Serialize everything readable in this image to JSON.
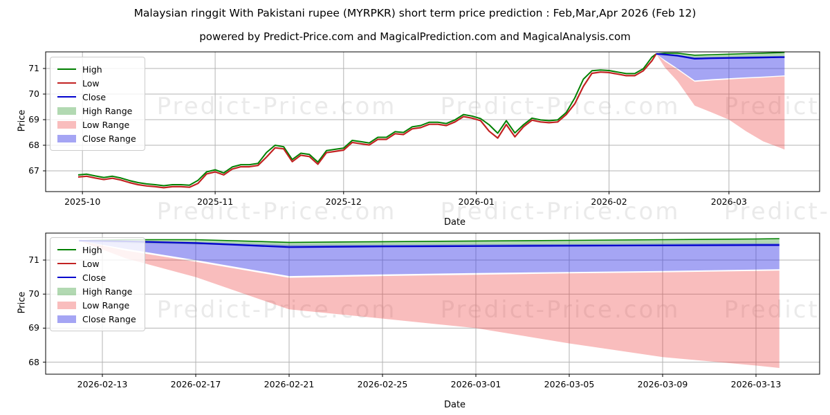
{
  "title": "Malaysian ringgit With Pakistani rupee (MYRPKR) short term price prediction : Feb,Mar,Apr 2026 (Feb 12)",
  "subtitle": "powered by Predict-Price.com and MagicalPrediction.com and MagicalAnalysis.com",
  "watermark": "Predict-Price.com",
  "colors": {
    "high_line": "#008000",
    "low_line": "#c22222",
    "close_line": "#0000cd",
    "high_range_fill": "rgba(0,128,0,0.30)",
    "low_range_fill": "rgba(235,50,50,0.32)",
    "close_range_fill": "rgba(55,55,230,0.45)",
    "grid": "#b3b3b3",
    "spine": "#000000"
  },
  "legend": {
    "items": [
      {
        "label": "High",
        "type": "line",
        "color": "#008000"
      },
      {
        "label": "Low",
        "type": "line",
        "color": "#c22222"
      },
      {
        "label": "Close",
        "type": "line",
        "color": "#0000cd"
      },
      {
        "label": "High Range",
        "type": "patch",
        "color": "rgba(0,128,0,0.30)"
      },
      {
        "label": "Low Range",
        "type": "patch",
        "color": "rgba(235,50,50,0.32)"
      },
      {
        "label": "Close Range",
        "type": "patch",
        "color": "rgba(55,55,230,0.45)"
      }
    ]
  },
  "prediction": {
    "dates": [
      "2026-02-12",
      "2026-02-14",
      "2026-02-17",
      "2026-02-21",
      "2026-02-25",
      "2026-03-01",
      "2026-03-05",
      "2026-03-09",
      "2026-03-13",
      "2026-03-14"
    ],
    "close": [
      71.57,
      71.55,
      71.5,
      71.38,
      71.4,
      71.41,
      71.42,
      71.43,
      71.44,
      71.44
    ],
    "close_max": [
      71.57,
      71.57,
      71.53,
      71.44,
      71.45,
      71.46,
      71.47,
      71.48,
      71.49,
      71.49
    ],
    "close_min": [
      71.57,
      71.33,
      71.0,
      70.53,
      70.58,
      70.62,
      70.65,
      70.68,
      70.72,
      70.73
    ],
    "high_max": [
      71.57,
      71.6,
      71.6,
      71.52,
      71.54,
      71.56,
      71.58,
      71.6,
      71.62,
      71.63
    ],
    "high_min": [
      71.57,
      71.5,
      71.46,
      71.4,
      71.41,
      71.42,
      71.43,
      71.44,
      71.45,
      71.45
    ],
    "low_max": [
      71.57,
      71.28,
      70.95,
      70.48,
      70.53,
      70.57,
      70.61,
      70.64,
      70.68,
      70.69
    ],
    "low_min": [
      71.57,
      71.05,
      70.5,
      69.55,
      69.28,
      69.0,
      68.55,
      68.15,
      67.9,
      67.83
    ]
  },
  "chart_data": [
    {
      "type": "line",
      "name": "overview",
      "xlabel": "Date",
      "ylabel": "Price",
      "grid": true,
      "legend_position": "upper left",
      "ylim": [
        66.19,
        71.65
      ],
      "yticks": [
        67,
        68,
        69,
        70,
        71
      ],
      "xticks": [
        "2025-10",
        "2025-11",
        "2025-12",
        "2026-01",
        "2026-02",
        "2026-03"
      ],
      "xtick_dates": [
        "2025-10-01",
        "2025-11-01",
        "2025-12-01",
        "2026-01-01",
        "2026-02-01",
        "2026-03-01"
      ],
      "series_legend": [
        "High",
        "Low",
        "Close",
        "High Range",
        "Low Range",
        "Close Range"
      ],
      "historical": {
        "dates": [
          "2025-09-30",
          "2025-10-02",
          "2025-10-04",
          "2025-10-06",
          "2025-10-08",
          "2025-10-10",
          "2025-10-12",
          "2025-10-14",
          "2025-10-16",
          "2025-10-18",
          "2025-10-20",
          "2025-10-22",
          "2025-10-24",
          "2025-10-26",
          "2025-10-28",
          "2025-10-30",
          "2025-11-01",
          "2025-11-03",
          "2025-11-05",
          "2025-11-07",
          "2025-11-09",
          "2025-11-11",
          "2025-11-13",
          "2025-11-15",
          "2025-11-17",
          "2025-11-19",
          "2025-11-21",
          "2025-11-23",
          "2025-11-25",
          "2025-11-27",
          "2025-11-29",
          "2025-12-01",
          "2025-12-03",
          "2025-12-05",
          "2025-12-07",
          "2025-12-09",
          "2025-12-11",
          "2025-12-13",
          "2025-12-15",
          "2025-12-17",
          "2025-12-19",
          "2025-12-21",
          "2025-12-23",
          "2025-12-25",
          "2025-12-27",
          "2025-12-29",
          "2025-12-31",
          "2026-01-02",
          "2026-01-04",
          "2026-01-06",
          "2026-01-08",
          "2026-01-10",
          "2026-01-12",
          "2026-01-14",
          "2026-01-16",
          "2026-01-18",
          "2026-01-20",
          "2026-01-22",
          "2026-01-24",
          "2026-01-26",
          "2026-01-28",
          "2026-01-30",
          "2026-02-01",
          "2026-02-03",
          "2026-02-05",
          "2026-02-07",
          "2026-02-09",
          "2026-02-11",
          "2026-02-12"
        ],
        "high": [
          66.84,
          66.87,
          66.8,
          66.74,
          66.79,
          66.72,
          66.62,
          66.54,
          66.49,
          66.46,
          66.42,
          66.46,
          66.46,
          66.44,
          66.63,
          66.96,
          67.04,
          66.92,
          67.15,
          67.24,
          67.24,
          67.29,
          67.72,
          68.0,
          67.94,
          67.44,
          67.69,
          67.64,
          67.34,
          67.79,
          67.84,
          67.89,
          68.19,
          68.14,
          68.09,
          68.31,
          68.31,
          68.53,
          68.5,
          68.72,
          68.77,
          68.9,
          68.9,
          68.85,
          68.99,
          69.2,
          69.14,
          69.04,
          68.8,
          68.47,
          68.96,
          68.48,
          68.8,
          69.06,
          68.99,
          68.96,
          68.99,
          69.28,
          69.85,
          70.58,
          70.91,
          70.94,
          70.92,
          70.86,
          70.8,
          70.8,
          70.99,
          71.44,
          71.57
        ],
        "low": [
          66.76,
          66.79,
          66.72,
          66.66,
          66.71,
          66.64,
          66.54,
          66.46,
          66.41,
          66.38,
          66.34,
          66.38,
          66.38,
          66.36,
          66.51,
          66.88,
          66.96,
          66.84,
          67.07,
          67.16,
          67.16,
          67.21,
          67.54,
          67.9,
          67.86,
          67.36,
          67.61,
          67.56,
          67.26,
          67.71,
          67.76,
          67.81,
          68.11,
          68.06,
          68.01,
          68.23,
          68.23,
          68.45,
          68.42,
          68.64,
          68.69,
          68.82,
          68.82,
          68.77,
          68.91,
          69.12,
          69.06,
          68.96,
          68.55,
          68.28,
          68.81,
          68.33,
          68.72,
          68.98,
          68.91,
          68.88,
          68.91,
          69.2,
          69.62,
          70.3,
          70.81,
          70.86,
          70.84,
          70.78,
          70.72,
          70.72,
          70.91,
          71.3,
          71.57
        ]
      },
      "uses_prediction": true
    },
    {
      "type": "area",
      "name": "prediction-detail",
      "xlabel": "Date",
      "ylabel": "Price",
      "grid": true,
      "legend_position": "upper left",
      "ylim": [
        67.64,
        71.79
      ],
      "yticks": [
        68,
        69,
        70,
        71
      ],
      "xticks": [
        "2026-02-13",
        "2026-02-17",
        "2026-02-21",
        "2026-02-25",
        "2026-03-01",
        "2026-03-05",
        "2026-03-09",
        "2026-03-13"
      ],
      "xtick_dates": [
        "2026-02-13",
        "2026-02-17",
        "2026-02-21",
        "2026-02-25",
        "2026-03-01",
        "2026-03-05",
        "2026-03-09",
        "2026-03-13"
      ],
      "series_legend": [
        "High",
        "Low",
        "Close",
        "High Range",
        "Low Range",
        "Close Range"
      ],
      "uses_prediction": true
    }
  ]
}
